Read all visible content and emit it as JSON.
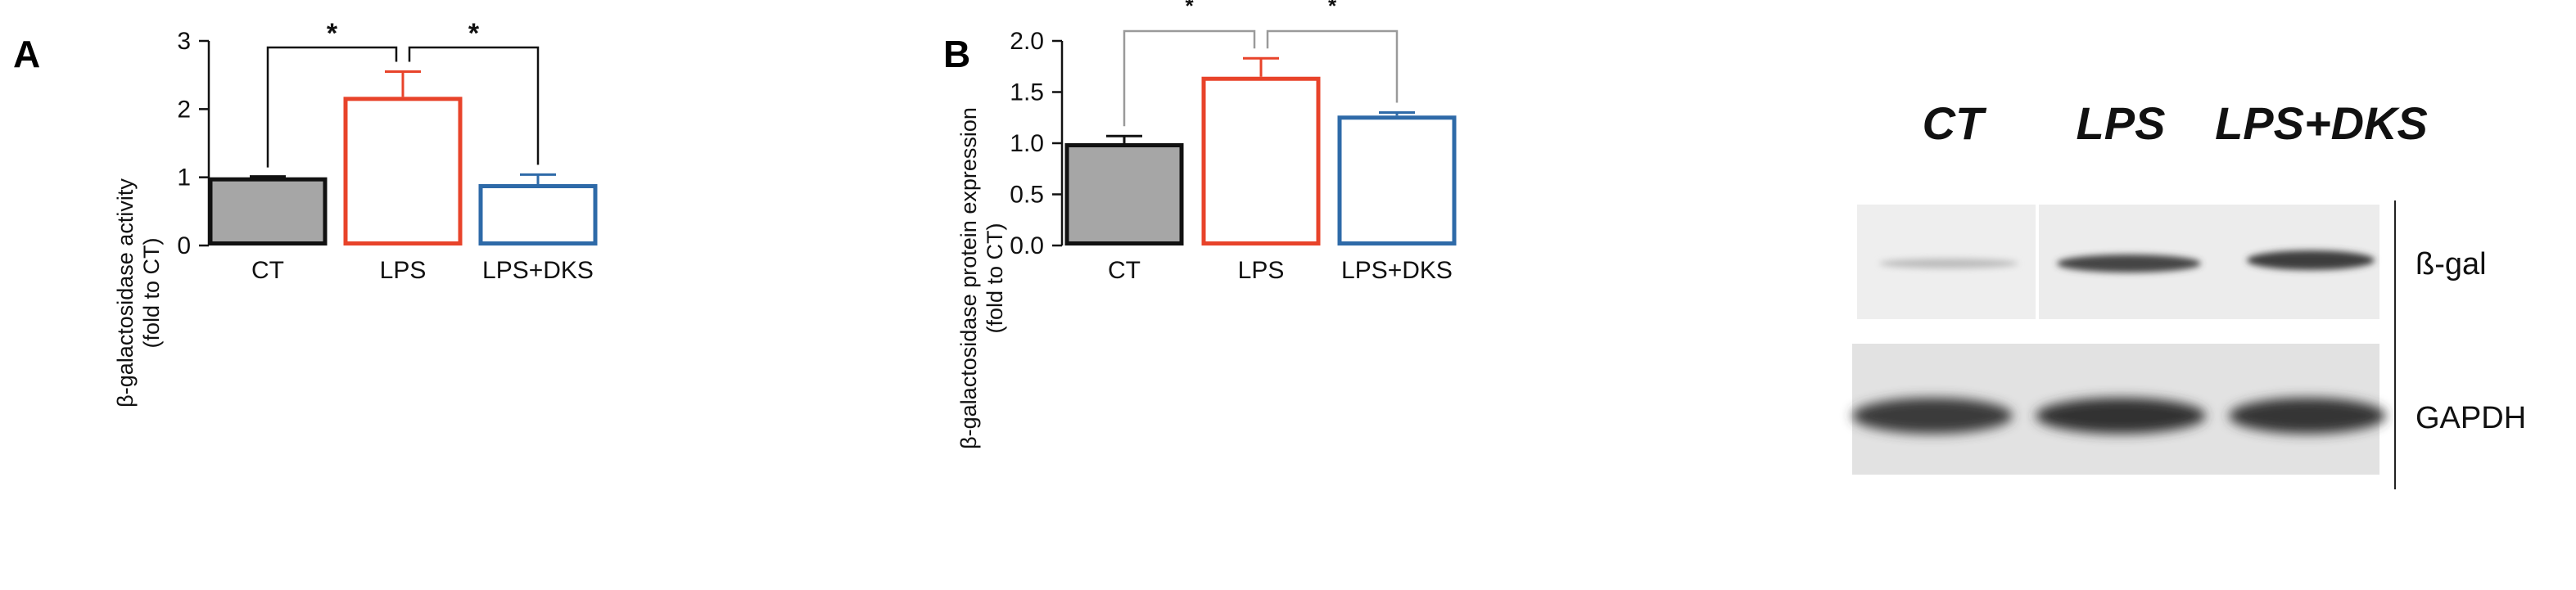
{
  "chart_data": [
    {
      "panel": "A",
      "type": "bar",
      "title": "",
      "xlabel": "",
      "ylabel": "β-galactosidase activity",
      "ylabel_sub": "(fold to CT)",
      "ylim": [
        0,
        3
      ],
      "yticks": [
        "0",
        "1",
        "2",
        "3"
      ],
      "categories": [
        "CT",
        "LPS",
        "LPS+DKS"
      ],
      "values": [
        1.0,
        2.18,
        0.9
      ],
      "errors": [
        0.0,
        0.37,
        0.14
      ],
      "fills": [
        "#a6a6a6",
        "#ffffff",
        "#ffffff"
      ],
      "strokes": [
        "#111111",
        "#e8432a",
        "#2e6aa8"
      ],
      "significance": [
        {
          "from": 0,
          "to": 1,
          "label": "*"
        },
        {
          "from": 1,
          "to": 2,
          "label": "*"
        }
      ],
      "bracket_color": "#111111"
    },
    {
      "panel": "B",
      "type": "bar",
      "title": "",
      "xlabel": "",
      "ylabel": "β-galactosidase protein expression",
      "ylabel_sub": "(fold to CT)",
      "ylim": [
        0,
        2
      ],
      "yticks": [
        "0.0",
        "0.5",
        "1.0",
        "1.5",
        "2.0"
      ],
      "categories": [
        "CT",
        "LPS",
        "LPS+DKS"
      ],
      "values": [
        1.0,
        1.65,
        1.27
      ],
      "errors": [
        0.07,
        0.18,
        0.03
      ],
      "fills": [
        "#a6a6a6",
        "#ffffff",
        "#ffffff"
      ],
      "strokes": [
        "#111111",
        "#e8432a",
        "#2e6aa8"
      ],
      "significance": [
        {
          "from": 0,
          "to": 1,
          "label": "*"
        },
        {
          "from": 1,
          "to": 2,
          "label": "*"
        }
      ],
      "bracket_color": "#9a9a9a"
    }
  ],
  "blot": {
    "lanes": [
      "CT",
      "LPS",
      "LPS+DKS"
    ],
    "proteins": [
      "ß-gal",
      "GAPDH"
    ]
  }
}
